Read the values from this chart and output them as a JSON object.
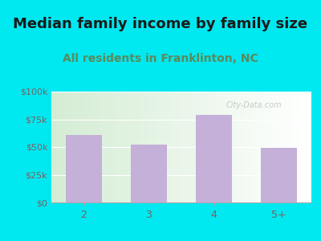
{
  "title": "Median family income by family size",
  "subtitle": "All residents in Franklinton, NC",
  "categories": [
    "2",
    "3",
    "4",
    "5+"
  ],
  "values": [
    61000,
    52000,
    79000,
    49000
  ],
  "bar_color": "#c4b0d8",
  "title_fontsize": 13,
  "subtitle_fontsize": 10,
  "subtitle_color": "#5a8a5a",
  "title_color": "#1a1a1a",
  "ytick_labels": [
    "$0",
    "$25k",
    "$50k",
    "$75k",
    "$100k"
  ],
  "ytick_values": [
    0,
    25000,
    50000,
    75000,
    100000
  ],
  "ylim": [
    0,
    100000
  ],
  "background_outer": "#00e8f0",
  "background_inner_left": "#d4ecd4",
  "tick_color": "#7a6060",
  "watermark": "City-Data.com"
}
